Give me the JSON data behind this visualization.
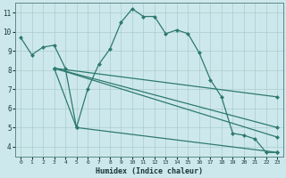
{
  "line1_x": [
    0,
    1,
    2,
    3,
    4,
    5,
    6,
    7,
    8,
    9,
    10,
    11,
    12,
    13,
    14,
    15,
    16,
    17,
    18,
    19,
    20,
    21,
    22,
    23
  ],
  "line1_y": [
    9.7,
    8.8,
    9.2,
    9.3,
    8.1,
    5.0,
    7.0,
    8.3,
    9.1,
    10.5,
    11.2,
    10.8,
    10.8,
    9.9,
    10.1,
    9.9,
    8.9,
    7.5,
    6.6,
    4.7,
    4.6,
    4.4,
    3.7,
    3.7
  ],
  "line2_x": [
    3,
    5,
    23
  ],
  "line2_y": [
    8.1,
    5.0,
    3.7
  ],
  "line3_x": [
    3,
    23
  ],
  "line3_y": [
    8.1,
    6.6
  ],
  "line4_x": [
    3,
    23
  ],
  "line4_y": [
    8.1,
    5.0
  ],
  "line5_x": [
    3,
    23
  ],
  "line5_y": [
    8.1,
    4.5
  ],
  "bg_color": "#cde8ec",
  "grid_color": "#aacccc",
  "line_color": "#2d7a6e",
  "xlabel": "Humidex (Indice chaleur)",
  "xlim": [
    -0.5,
    23.5
  ],
  "ylim": [
    3.5,
    11.5
  ],
  "yticks": [
    4,
    5,
    6,
    7,
    8,
    9,
    10,
    11
  ],
  "xticks": [
    0,
    1,
    2,
    3,
    4,
    5,
    6,
    7,
    8,
    9,
    10,
    11,
    12,
    13,
    14,
    15,
    16,
    17,
    18,
    19,
    20,
    21,
    22,
    23
  ],
  "markersize": 2.5,
  "linewidth": 0.9
}
